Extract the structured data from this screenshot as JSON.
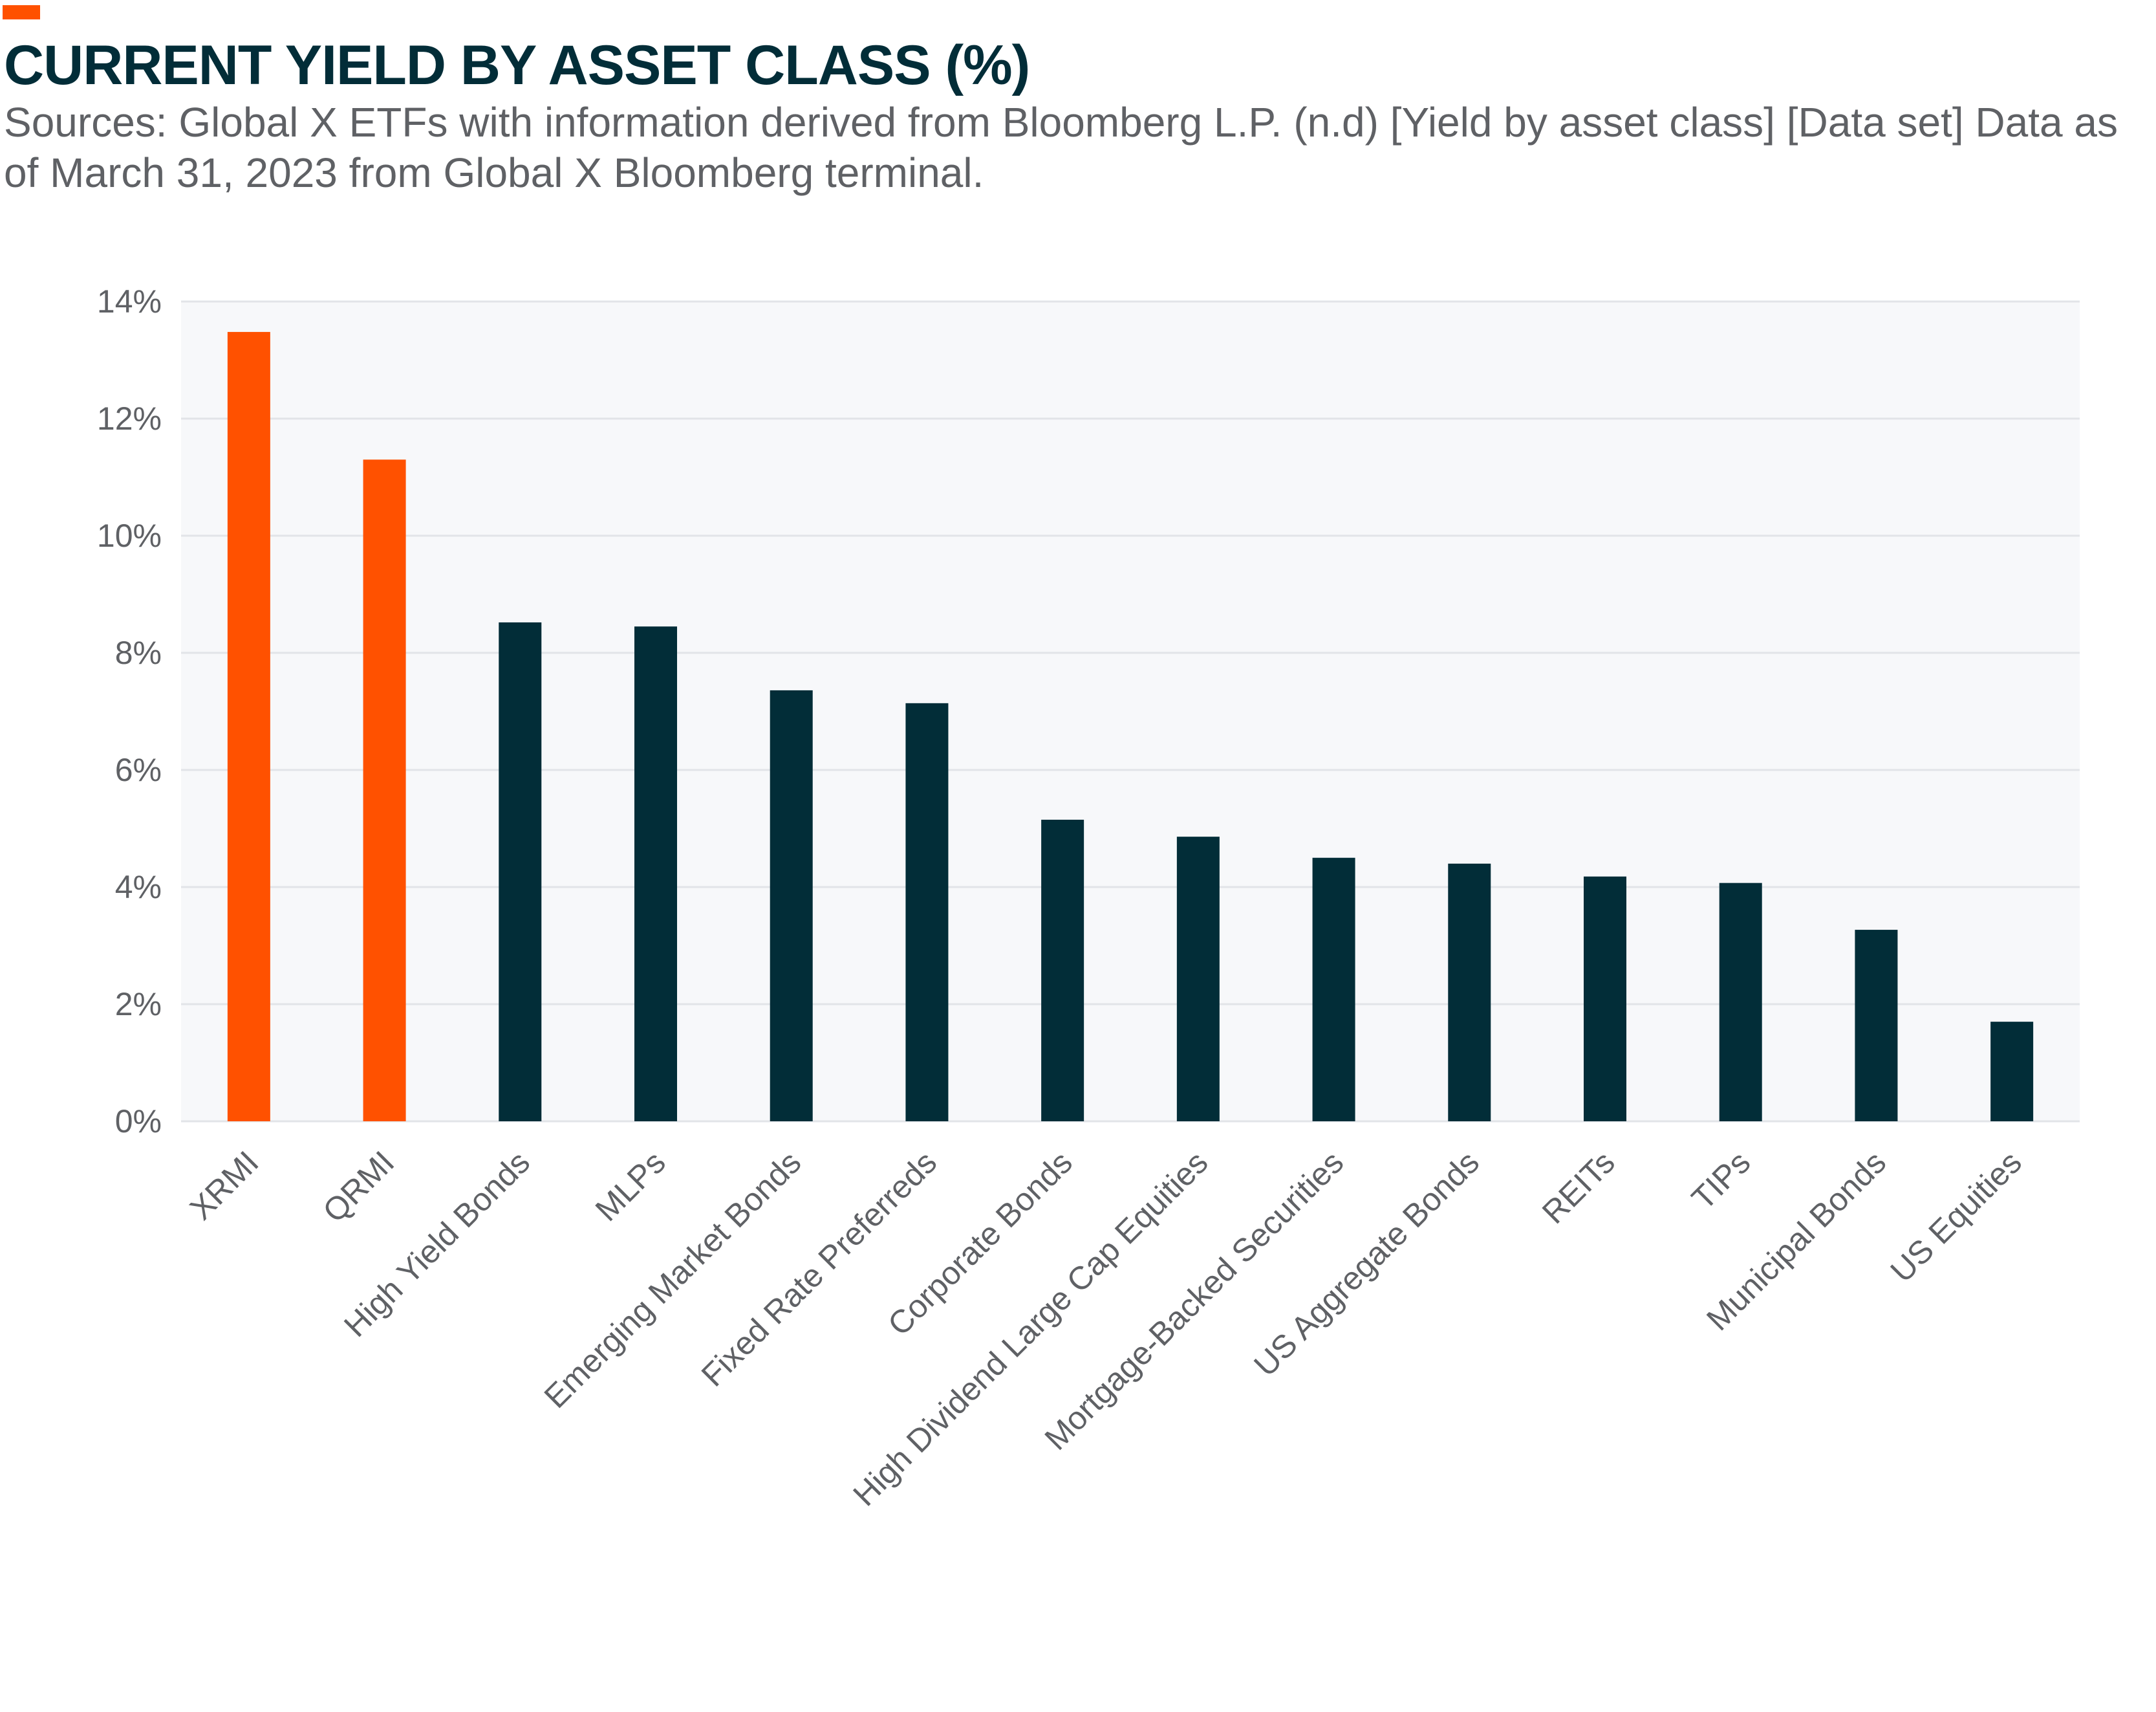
{
  "header": {
    "title": "CURRENT YIELD BY ASSET CLASS (%)",
    "source": "Sources: Global X ETFs with information derived from Bloomberg L.P. (n.d) [Yield by asset class] [Data set] Data as of March 31, 2023 from Global X Bloomberg terminal."
  },
  "colors": {
    "accent": "#ff5100",
    "bar_default": "#022d38",
    "title": "#022d38",
    "plot_background": "#f7f8fa",
    "gridline": "#e2e4e8",
    "axis_text": "#5f6165"
  },
  "chart_data": {
    "type": "bar",
    "title": "CURRENT YIELD BY ASSET CLASS (%)",
    "xlabel": "",
    "ylabel": "",
    "ylim": [
      0,
      14
    ],
    "yticks": [
      0,
      2,
      4,
      6,
      8,
      10,
      12,
      14
    ],
    "ytick_labels": [
      "0%",
      "2%",
      "4%",
      "6%",
      "8%",
      "10%",
      "12%",
      "14%"
    ],
    "grid": true,
    "legend": "none",
    "categories": [
      "XRMI",
      "QRMI",
      "High Yield Bonds",
      "MLPs",
      "Emerging Market Bonds",
      "Fixed Rate Preferreds",
      "Corporate Bonds",
      "High Dividend Large Cap Equities",
      "Mortgage-Backed Securities",
      "US Aggregate Bonds",
      "REITs",
      "TIPs",
      "Municipal Bonds",
      "US Equities"
    ],
    "values": [
      13.48,
      11.3,
      8.52,
      8.45,
      7.36,
      7.14,
      5.15,
      4.86,
      4.5,
      4.4,
      4.18,
      4.07,
      3.27,
      1.7
    ],
    "highlighted": [
      "XRMI",
      "QRMI"
    ],
    "highlight_color": "#ff5100",
    "bar_color": "#022d38"
  }
}
